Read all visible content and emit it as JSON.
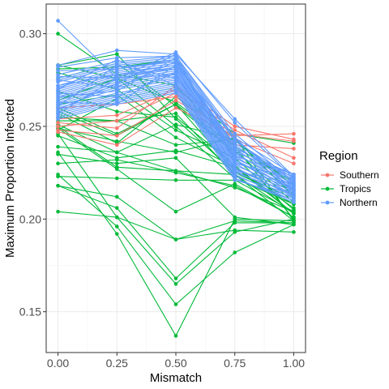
{
  "chart_data": {
    "type": "line",
    "xlabel": "Mismatch",
    "ylabel": "Maximum Proportion Infected",
    "x": [
      0,
      0.25,
      0.5,
      0.75,
      1
    ],
    "x_ticks": [
      "0.00",
      "0.25",
      "0.50",
      "0.75",
      "1.00"
    ],
    "y_ticks": [
      "0.15",
      "0.20",
      "0.25",
      "0.30"
    ],
    "ylim": [
      0.128,
      0.316
    ],
    "xlim": [
      -0.05,
      1.05
    ],
    "grid": true,
    "legend": {
      "title": "Region",
      "position": "right",
      "entries": [
        {
          "label": "Southern",
          "color": "#F8766D"
        },
        {
          "label": "Tropics",
          "color": "#00BA38"
        },
        {
          "label": "Northern",
          "color": "#619CFF"
        }
      ]
    },
    "series": [
      {
        "group": "Tropics",
        "values": [
          0.3,
          0.278,
          0.272,
          0.239,
          0.22
        ]
      },
      {
        "group": "Tropics",
        "values": [
          0.283,
          0.289,
          0.254,
          0.225,
          0.211
        ]
      },
      {
        "group": "Tropics",
        "values": [
          0.281,
          0.282,
          0.286,
          0.232,
          0.214
        ]
      },
      {
        "group": "Tropics",
        "values": [
          0.279,
          0.27,
          0.248,
          0.233,
          0.205
        ]
      },
      {
        "group": "Tropics",
        "values": [
          0.276,
          0.284,
          0.261,
          0.236,
          0.216
        ]
      },
      {
        "group": "Tropics",
        "values": [
          0.264,
          0.276,
          0.263,
          0.239,
          0.2
        ]
      },
      {
        "group": "Tropics",
        "values": [
          0.262,
          0.267,
          0.244,
          0.228,
          0.203
        ]
      },
      {
        "group": "Tropics",
        "values": [
          0.258,
          0.245,
          0.262,
          0.226,
          0.208
        ]
      },
      {
        "group": "Tropics",
        "values": [
          0.257,
          0.241,
          0.266,
          0.244,
          0.199
        ]
      },
      {
        "group": "Tropics",
        "values": [
          0.255,
          0.253,
          0.24,
          0.243,
          0.218
        ]
      },
      {
        "group": "Tropics",
        "values": [
          0.253,
          0.253,
          0.257,
          0.224,
          0.203
        ]
      },
      {
        "group": "Tropics",
        "values": [
          0.251,
          0.236,
          0.251,
          0.243,
          0.213
        ]
      },
      {
        "group": "Tropics",
        "values": [
          0.249,
          0.242,
          0.236,
          0.244,
          0.212
        ]
      },
      {
        "group": "Tropics",
        "values": [
          0.248,
          0.265,
          0.271,
          0.246,
          0.241
        ]
      },
      {
        "group": "Tropics",
        "values": [
          0.245,
          0.233,
          0.237,
          0.228,
          0.206
        ]
      },
      {
        "group": "Tropics",
        "values": [
          0.239,
          0.236,
          0.226,
          0.224,
          0.199
        ]
      },
      {
        "group": "Tropics",
        "values": [
          0.235,
          0.23,
          0.233,
          0.201,
          0.197
        ]
      },
      {
        "group": "Tropics",
        "values": [
          0.23,
          0.232,
          0.225,
          0.218,
          0.201
        ]
      },
      {
        "group": "Tropics",
        "values": [
          0.223,
          0.222,
          0.221,
          0.221,
          0.204
        ]
      },
      {
        "group": "Tropics",
        "values": [
          0.218,
          0.212,
          0.189,
          0.194,
          0.193
        ]
      },
      {
        "group": "Tropics",
        "values": [
          0.218,
          0.206,
          0.168,
          0.198,
          0.198
        ]
      },
      {
        "group": "Tropics",
        "values": [
          0.246,
          0.201,
          0.165,
          0.193,
          0.2
        ]
      },
      {
        "group": "Tropics",
        "values": [
          0.204,
          0.201,
          0.189,
          0.199,
          0.198
        ]
      },
      {
        "group": "Tropics",
        "values": [
          0.224,
          0.196,
          0.154,
          0.182,
          0.197
        ]
      },
      {
        "group": "Tropics",
        "values": [
          0.236,
          0.192,
          0.137,
          0.2,
          0.199
        ]
      },
      {
        "group": "Tropics",
        "values": [
          0.249,
          0.227,
          0.204,
          0.219,
          0.201
        ]
      },
      {
        "group": "Tropics",
        "values": [
          0.25,
          0.228,
          0.226,
          0.217,
          0.204
        ]
      },
      {
        "group": "Tropics",
        "values": [
          0.283,
          0.276,
          0.25,
          0.222,
          0.208
        ]
      },
      {
        "group": "Tropics",
        "values": [
          0.269,
          0.258,
          0.255,
          0.229,
          0.203
        ]
      },
      {
        "group": "Tropics",
        "values": [
          0.26,
          0.246,
          0.262,
          0.237,
          0.209
        ]
      },
      {
        "group": "Southern",
        "values": [
          0.247,
          0.24,
          0.26,
          0.245,
          0.246
        ]
      },
      {
        "group": "Southern",
        "values": [
          0.252,
          0.249,
          0.272,
          0.25,
          0.243
        ]
      },
      {
        "group": "Southern",
        "values": [
          0.254,
          0.256,
          0.27,
          0.248,
          0.233
        ]
      },
      {
        "group": "Southern",
        "values": [
          0.25,
          0.253,
          0.268,
          0.243,
          0.23
        ]
      },
      {
        "group": "Southern",
        "values": [
          0.26,
          0.262,
          0.266,
          0.24,
          0.238
        ]
      },
      {
        "group": "Southern",
        "values": [
          0.248,
          0.245,
          0.264,
          0.246,
          0.242
        ]
      },
      {
        "group": "Northern",
        "values": [
          0.307,
          0.276,
          0.29,
          0.252,
          0.222
        ]
      },
      {
        "group": "Northern",
        "values": [
          0.283,
          0.291,
          0.289,
          0.254,
          0.223
        ]
      },
      {
        "group": "Northern",
        "values": [
          0.282,
          0.287,
          0.288,
          0.246,
          0.22
        ]
      },
      {
        "group": "Northern",
        "values": [
          0.278,
          0.285,
          0.288,
          0.244,
          0.224
        ]
      },
      {
        "group": "Northern",
        "values": [
          0.276,
          0.284,
          0.287,
          0.243,
          0.219
        ]
      },
      {
        "group": "Northern",
        "values": [
          0.275,
          0.283,
          0.286,
          0.242,
          0.222
        ]
      },
      {
        "group": "Northern",
        "values": [
          0.274,
          0.282,
          0.285,
          0.24,
          0.218
        ]
      },
      {
        "group": "Northern",
        "values": [
          0.272,
          0.281,
          0.285,
          0.239,
          0.221
        ]
      },
      {
        "group": "Northern",
        "values": [
          0.271,
          0.28,
          0.284,
          0.238,
          0.217
        ]
      },
      {
        "group": "Northern",
        "values": [
          0.27,
          0.279,
          0.283,
          0.237,
          0.22
        ]
      },
      {
        "group": "Northern",
        "values": [
          0.269,
          0.278,
          0.283,
          0.236,
          0.216
        ]
      },
      {
        "group": "Northern",
        "values": [
          0.268,
          0.277,
          0.282,
          0.235,
          0.219
        ]
      },
      {
        "group": "Northern",
        "values": [
          0.267,
          0.276,
          0.281,
          0.234,
          0.215
        ]
      },
      {
        "group": "Northern",
        "values": [
          0.266,
          0.275,
          0.28,
          0.233,
          0.218
        ]
      },
      {
        "group": "Northern",
        "values": [
          0.265,
          0.274,
          0.279,
          0.232,
          0.214
        ]
      },
      {
        "group": "Northern",
        "values": [
          0.264,
          0.273,
          0.278,
          0.231,
          0.217
        ]
      },
      {
        "group": "Northern",
        "values": [
          0.263,
          0.272,
          0.277,
          0.23,
          0.213
        ]
      },
      {
        "group": "Northern",
        "values": [
          0.262,
          0.271,
          0.276,
          0.229,
          0.216
        ]
      },
      {
        "group": "Northern",
        "values": [
          0.261,
          0.27,
          0.275,
          0.228,
          0.212
        ]
      },
      {
        "group": "Northern",
        "values": [
          0.26,
          0.268,
          0.274,
          0.227,
          0.215
        ]
      },
      {
        "group": "Northern",
        "values": [
          0.259,
          0.267,
          0.273,
          0.226,
          0.211
        ]
      },
      {
        "group": "Northern",
        "values": [
          0.258,
          0.266,
          0.272,
          0.225,
          0.214
        ]
      },
      {
        "group": "Northern",
        "values": [
          0.257,
          0.265,
          0.271,
          0.224,
          0.21
        ]
      },
      {
        "group": "Northern",
        "values": [
          0.256,
          0.264,
          0.27,
          0.223,
          0.213
        ]
      },
      {
        "group": "Northern",
        "values": [
          0.255,
          0.263,
          0.269,
          0.222,
          0.209
        ]
      },
      {
        "group": "Northern",
        "values": [
          0.254,
          0.262,
          0.268,
          0.221,
          0.212
        ]
      },
      {
        "group": "Northern",
        "values": [
          0.272,
          0.278,
          0.281,
          0.236,
          0.224
        ]
      },
      {
        "group": "Northern",
        "values": [
          0.277,
          0.276,
          0.278,
          0.234,
          0.223
        ]
      },
      {
        "group": "Northern",
        "values": [
          0.261,
          0.283,
          0.276,
          0.241,
          0.221
        ]
      },
      {
        "group": "Northern",
        "values": [
          0.266,
          0.269,
          0.287,
          0.232,
          0.216
        ]
      },
      {
        "group": "Northern",
        "values": [
          0.259,
          0.273,
          0.289,
          0.23,
          0.222
        ]
      },
      {
        "group": "Northern",
        "values": [
          0.27,
          0.286,
          0.272,
          0.226,
          0.219
        ]
      },
      {
        "group": "Northern",
        "values": [
          0.263,
          0.262,
          0.283,
          0.244,
          0.215
        ]
      },
      {
        "group": "Northern",
        "values": [
          0.275,
          0.271,
          0.285,
          0.238,
          0.224
        ]
      },
      {
        "group": "Northern",
        "values": [
          0.257,
          0.276,
          0.282,
          0.227,
          0.213
        ]
      },
      {
        "group": "Northern",
        "values": [
          0.268,
          0.266,
          0.279,
          0.222,
          0.21
        ]
      },
      {
        "group": "Northern",
        "values": [
          0.28,
          0.281,
          0.286,
          0.233,
          0.218
        ]
      }
    ]
  }
}
